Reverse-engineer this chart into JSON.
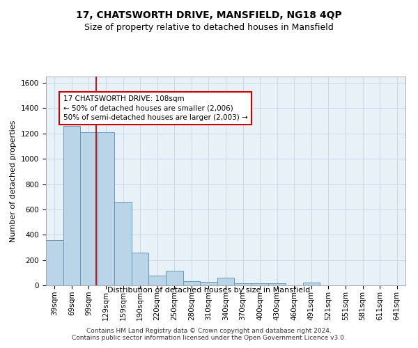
{
  "title": "17, CHATSWORTH DRIVE, MANSFIELD, NG18 4QP",
  "subtitle": "Size of property relative to detached houses in Mansfield",
  "xlabel": "Distribution of detached houses by size in Mansfield",
  "ylabel": "Number of detached properties",
  "categories": [
    "39sqm",
    "69sqm",
    "99sqm",
    "129sqm",
    "159sqm",
    "190sqm",
    "220sqm",
    "250sqm",
    "280sqm",
    "310sqm",
    "340sqm",
    "370sqm",
    "400sqm",
    "430sqm",
    "460sqm",
    "491sqm",
    "521sqm",
    "551sqm",
    "581sqm",
    "611sqm",
    "641sqm"
  ],
  "values": [
    360,
    1260,
    1210,
    1210,
    660,
    260,
    75,
    115,
    35,
    25,
    60,
    15,
    15,
    15,
    0,
    20,
    0,
    0,
    0,
    0,
    0
  ],
  "bar_color": "#bad4e8",
  "bar_edge_color": "#6699bb",
  "vline_color": "#cc0000",
  "vline_pos": 2.43,
  "annotation_text": "17 CHATSWORTH DRIVE: 108sqm\n← 50% of detached houses are smaller (2,006)\n50% of semi-detached houses are larger (2,003) →",
  "annotation_box_color": "#ffffff",
  "annotation_box_edge": "#cc0000",
  "ylim": [
    0,
    1650
  ],
  "yticks": [
    0,
    200,
    400,
    600,
    800,
    1000,
    1200,
    1400,
    1600
  ],
  "grid_color": "#c8d8e8",
  "background_color": "#e8f0f8",
  "footer": "Contains HM Land Registry data © Crown copyright and database right 2024.\nContains public sector information licensed under the Open Government Licence v3.0.",
  "title_fontsize": 10,
  "subtitle_fontsize": 9,
  "xlabel_fontsize": 8,
  "ylabel_fontsize": 8,
  "tick_fontsize": 7.5,
  "annotation_fontsize": 7.5,
  "footer_fontsize": 6.5
}
